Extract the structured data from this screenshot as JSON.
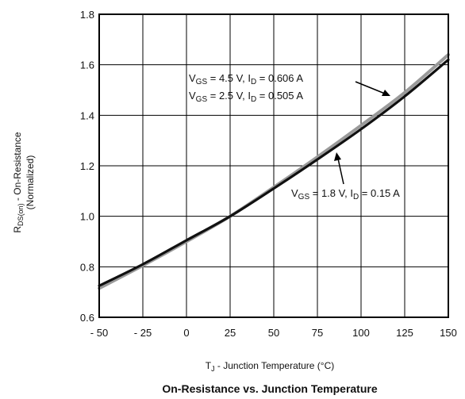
{
  "chart_data": {
    "type": "line",
    "title": "On-Resistance vs. Junction Temperature",
    "xlabel": "T_J - Junction Temperature (°C)",
    "ylabel": "R_DS(on) - On-Resistance (Normalized)",
    "xlim": [
      -50,
      150
    ],
    "ylim": [
      0.6,
      1.8
    ],
    "xticks": [
      -50,
      -25,
      0,
      25,
      50,
      75,
      100,
      125,
      150
    ],
    "xtick_labels": [
      "- 50",
      "- 25",
      "0",
      "25",
      "50",
      "75",
      "100",
      "125",
      "150"
    ],
    "yticks": [
      0.6,
      0.8,
      1.0,
      1.2,
      1.4,
      1.6,
      1.8
    ],
    "ytick_labels": [
      "0.6",
      "0.8",
      "1.0",
      "1.2",
      "1.4",
      "1.6",
      "1.8"
    ],
    "grid": true,
    "series": [
      {
        "name": "VGS = 4.5 V, ID = 0.606 A",
        "color": "#111111",
        "x": [
          -50,
          -25,
          0,
          25,
          50,
          75,
          100,
          125,
          150
        ],
        "y": [
          0.725,
          0.81,
          0.905,
          1.0,
          1.11,
          1.225,
          1.345,
          1.475,
          1.62
        ]
      },
      {
        "name": "VGS = 2.5 V, ID = 0.505 A",
        "color": "#111111",
        "x": [
          -50,
          -25,
          0,
          25,
          50,
          75,
          100,
          125,
          150
        ],
        "y": [
          0.725,
          0.81,
          0.905,
          1.0,
          1.11,
          1.225,
          1.345,
          1.475,
          1.62
        ]
      },
      {
        "name": "VGS = 1.8 V, ID = 0.15 A",
        "color": "#9a9a9a",
        "x": [
          -50,
          -25,
          0,
          25,
          50,
          75,
          100,
          125,
          150
        ],
        "y": [
          0.715,
          0.805,
          0.9,
          1.0,
          1.115,
          1.235,
          1.36,
          1.49,
          1.64
        ]
      }
    ],
    "annotations": [
      {
        "line1": "VGS = 4.5 V, ID =  0.606 A",
        "line2": "VGS = 2.5 V, ID =  0.505 A"
      },
      {
        "line1": "VGS = 1.8 V, ID =  0.15 A"
      }
    ]
  }
}
